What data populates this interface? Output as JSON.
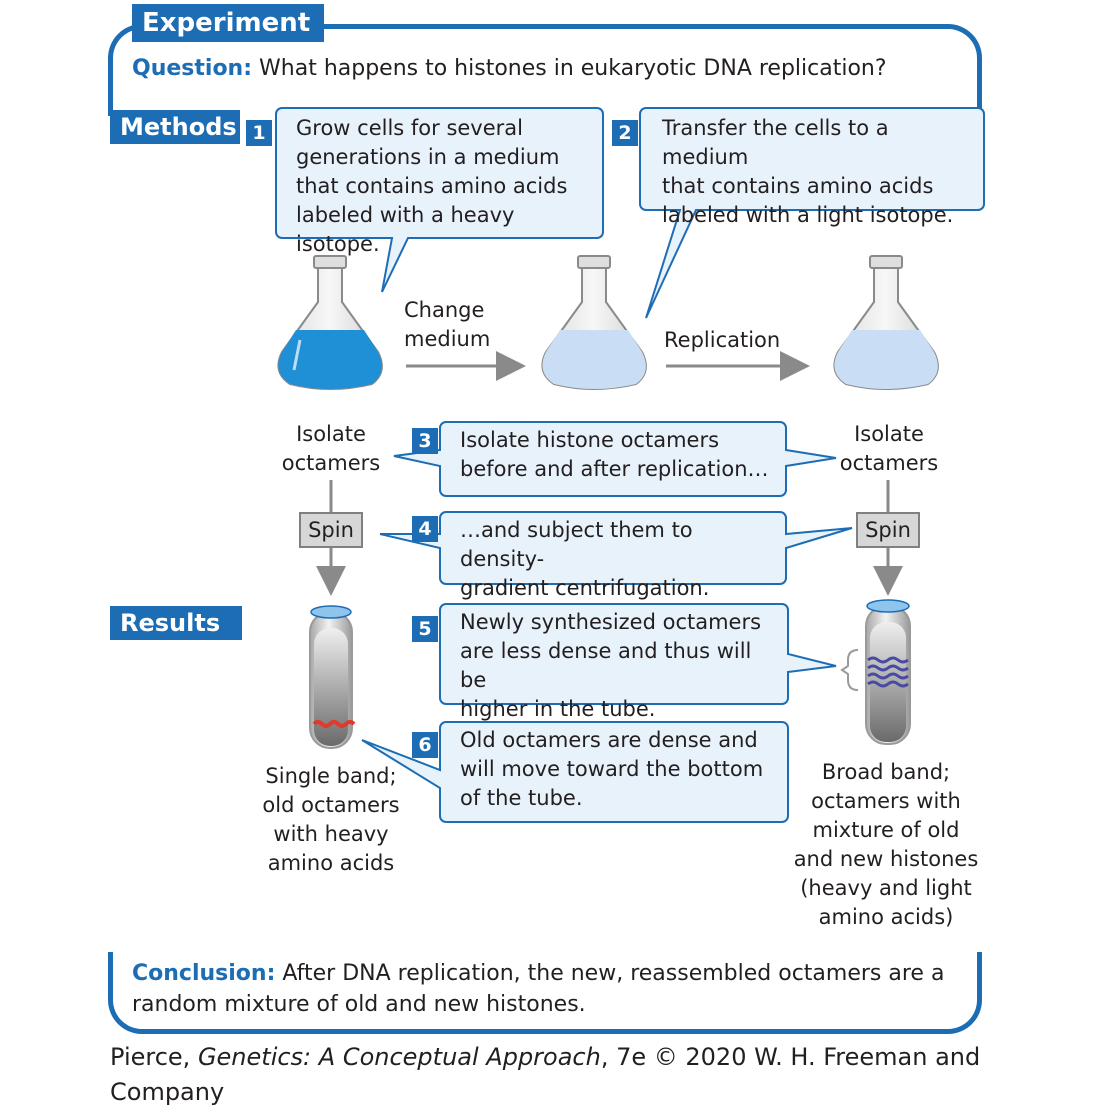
{
  "experiment_label": "Experiment",
  "question": {
    "lead": "Question:",
    "text": "What happens to histones in eukaryotic DNA replication?"
  },
  "methods_label": "Methods",
  "results_label": "Results",
  "steps": [
    {
      "number": "1",
      "text": "Grow cells for several\ngenerations in a medium\nthat contains amino acids\nlabeled with a heavy isotope."
    },
    {
      "number": "2",
      "text": "Transfer the cells to a medium\nthat contains amino acids\nlabeled with a light isotope."
    },
    {
      "number": "3",
      "text": "Isolate histone octamers\nbefore and after replication…"
    },
    {
      "number": "4",
      "text": "…and subject them to density-\ngradient centrifugation."
    },
    {
      "number": "5",
      "text": "Newly synthesized octamers\nare less dense and thus will be\nhigher in the tube."
    },
    {
      "number": "6",
      "text": "Old octamers are dense and\nwill move toward the bottom\nof the tube."
    }
  ],
  "arrows": {
    "change_medium": "Change\nmedium",
    "replication": "Replication"
  },
  "isolate_left": "Isolate\noctamers",
  "isolate_right": "Isolate\noctamers",
  "spin_label": "Spin",
  "result_left": "Single band;\nold octamers\nwith heavy\namino acids",
  "result_right": "Broad band;\noctamers with\nmixture of old\nand new histones\n(heavy and light\namino acids)",
  "conclusion": {
    "lead": "Conclusion:",
    "text": "After DNA replication, the new, reassembled octamers are a random mixture of old and new histones."
  },
  "credit": {
    "prefix": "Pierce, ",
    "title": "Genetics: A Conceptual Approach",
    "suffix": ", 7e © 2020 W. H. Freeman and Company"
  },
  "colors": {
    "accent": "#1d6db5",
    "heavy_medium": "#1f8fd6",
    "light_medium": "#c9def4",
    "old_band": "#e03a2a",
    "new_band": "#4a4aa0"
  }
}
